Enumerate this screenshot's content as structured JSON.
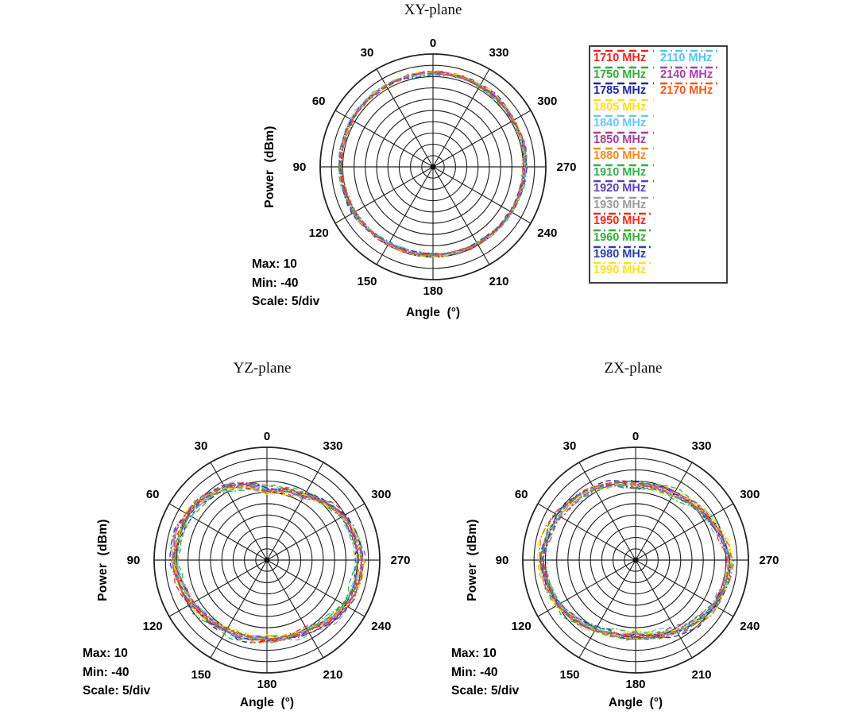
{
  "canvas": {
    "background": "#ffffff"
  },
  "legend": {
    "entries": [
      {
        "label": "1710 MHz",
        "color": "#ee2322",
        "style": "dashed",
        "column": "left"
      },
      {
        "label": "1750 MHz",
        "color": "#33a93e",
        "style": "dashed",
        "column": "left"
      },
      {
        "label": "1785 MHz",
        "color": "#20269b",
        "style": "dashed",
        "column": "left"
      },
      {
        "label": "1805 MHz",
        "color": "#fede17",
        "style": "dashed",
        "column": "left"
      },
      {
        "label": "1840 MHz",
        "color": "#6ac6ec",
        "style": "dashed",
        "column": "left"
      },
      {
        "label": "1850 MHz",
        "color": "#a53a9d",
        "style": "dashed",
        "column": "left"
      },
      {
        "label": "1880 MHz",
        "color": "#f68b1f",
        "style": "dashed",
        "column": "left"
      },
      {
        "label": "1910 MHz",
        "color": "#33b04a",
        "style": "dashed",
        "column": "left"
      },
      {
        "label": "1920 MHz",
        "color": "#5c3eb4",
        "style": "dashed",
        "column": "left"
      },
      {
        "label": "1930 MHz",
        "color": "#9b9b9b",
        "style": "dashed",
        "column": "left"
      },
      {
        "label": "1950 MHz",
        "color": "#ef2c20",
        "style": "dashdot",
        "column": "left"
      },
      {
        "label": "1960 MHz",
        "color": "#35ad3b",
        "style": "dashdot",
        "column": "left"
      },
      {
        "label": "1980 MHz",
        "color": "#2740ae",
        "style": "dashdot",
        "column": "left"
      },
      {
        "label": "1990 MHz",
        "color": "#ffe01a",
        "style": "dashdot",
        "column": "left"
      },
      {
        "label": "2110 MHz",
        "color": "#52c6ee",
        "style": "dashdot",
        "column": "right"
      },
      {
        "label": "2140 MHz",
        "color": "#a93fa5",
        "style": "dashdot",
        "column": "right"
      },
      {
        "label": "2170 MHz",
        "color": "#f4551c",
        "style": "dashdot",
        "column": "right"
      }
    ]
  },
  "chart_data": [
    {
      "type": "line",
      "projection": "polar",
      "title": "XY-plane",
      "xlabel": "Angle  (°)",
      "ylabel": "Power  (dBm)",
      "angle_ticks_deg": [
        0,
        30,
        60,
        90,
        120,
        150,
        180,
        210,
        240,
        270,
        300,
        330
      ],
      "angle_zero_position": "top",
      "angle_direction": "counterclockwise",
      "r_min": -40,
      "r_max": 10,
      "r_scale_per_div": 5,
      "r_divisions": 10,
      "annotations": [
        "Max: 10",
        "Min: -40",
        "Scale: 5/div"
      ],
      "series_mhz": [
        1710,
        1750,
        1785,
        1805,
        1840,
        1850,
        1880,
        1910,
        1920,
        1930,
        1950,
        1960,
        1980,
        1990,
        2110,
        2140,
        2170
      ],
      "mean_power_dbm_at_ticks": [
        1.5,
        1.5,
        1.5,
        1.0,
        0.3,
        -0.8,
        -1.0,
        -0.8,
        0.0,
        0.8,
        1.2,
        1.5
      ],
      "spread_db": 0.7
    },
    {
      "type": "line",
      "projection": "polar",
      "title": "YZ-plane",
      "xlabel": "Angle  (°)",
      "ylabel": "Power  (dBm)",
      "angle_ticks_deg": [
        0,
        30,
        60,
        90,
        120,
        150,
        180,
        210,
        240,
        270,
        300,
        330
      ],
      "angle_zero_position": "top",
      "angle_direction": "counterclockwise",
      "r_min": -40,
      "r_max": 10,
      "r_scale_per_div": 5,
      "r_divisions": 10,
      "annotations": [
        "Max: 10",
        "Min: -40",
        "Scale: 5/div"
      ],
      "series_mhz": [
        1710,
        1750,
        1785,
        1805,
        1840,
        1850,
        1880,
        1910,
        1920,
        1930,
        1950,
        1960,
        1980,
        1990,
        2110,
        2140,
        2170
      ],
      "mean_power_dbm_at_ticks": [
        -9.0,
        -3.0,
        0.5,
        1.0,
        -1.5,
        -4.0,
        -5.0,
        -4.0,
        0.0,
        1.5,
        -1.0,
        -7.0
      ],
      "spread_db": 1.9
    },
    {
      "type": "line",
      "projection": "polar",
      "title": "ZX-plane",
      "xlabel": "Angle  (°)",
      "ylabel": "Power  (dBm)",
      "angle_ticks_deg": [
        0,
        30,
        60,
        90,
        120,
        150,
        180,
        210,
        240,
        270,
        300,
        330
      ],
      "angle_zero_position": "top",
      "angle_direction": "counterclockwise",
      "r_min": -40,
      "r_max": 10,
      "r_scale_per_div": 5,
      "r_divisions": 10,
      "annotations": [
        "Max: 10",
        "Min: -40",
        "Scale: 5/div"
      ],
      "series_mhz": [
        1710,
        1750,
        1785,
        1805,
        1840,
        1850,
        1880,
        1910,
        1920,
        1930,
        1950,
        1960,
        1980,
        1990,
        2110,
        2140,
        2170
      ],
      "mean_power_dbm_at_ticks": [
        -7.0,
        -3.5,
        -0.5,
        2.0,
        0.0,
        -4.5,
        -7.0,
        -4.0,
        0.5,
        2.0,
        -2.5,
        -6.0
      ],
      "spread_db": 1.6
    }
  ]
}
